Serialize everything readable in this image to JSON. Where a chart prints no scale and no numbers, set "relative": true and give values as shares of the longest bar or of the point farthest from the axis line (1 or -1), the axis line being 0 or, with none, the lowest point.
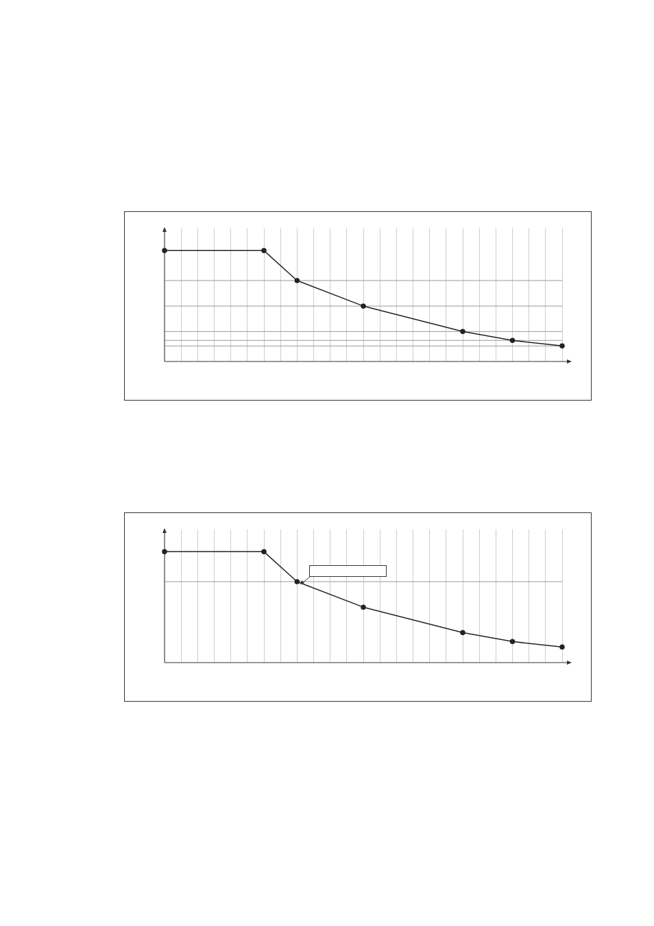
{
  "chart_data": [
    {
      "type": "line",
      "relative": true,
      "categories": [
        null,
        null,
        null,
        null,
        null,
        null,
        null,
        null,
        null,
        null,
        null,
        null,
        null,
        null,
        null,
        null,
        null,
        null,
        null,
        null,
        null,
        null,
        null,
        null,
        null
      ],
      "color": "#222222",
      "marker": "circle",
      "grid": "x",
      "tick_labels": false,
      "values": [
        1,
        null,
        null,
        null,
        null,
        null,
        1,
        null,
        0.73,
        null,
        null,
        null,
        0.5,
        null,
        null,
        null,
        null,
        null,
        0.27,
        null,
        null,
        0.19,
        null,
        null,
        0.14
      ],
      "ref_lines": [
        {
          "axis": "y",
          "value": 0.73,
          "color": "#999999"
        },
        {
          "axis": "y",
          "value": 0.5,
          "color": "#999999"
        },
        {
          "axis": "y",
          "value": 0.27,
          "color": "#999999"
        },
        {
          "axis": "y",
          "value": 0.19,
          "color": "#999999"
        },
        {
          "axis": "y",
          "value": 0.14,
          "color": "#999999"
        }
      ]
    },
    {
      "type": "line",
      "relative": true,
      "categories": [
        null,
        null,
        null,
        null,
        null,
        null,
        null,
        null,
        null,
        null,
        null,
        null,
        null,
        null,
        null,
        null,
        null,
        null,
        null,
        null,
        null,
        null,
        null,
        null,
        null
      ],
      "color": "#222222",
      "marker": "circle",
      "grid": "x",
      "tick_labels": false,
      "values": [
        1,
        null,
        null,
        null,
        null,
        null,
        1,
        null,
        0.73,
        null,
        null,
        null,
        0.5,
        null,
        null,
        null,
        null,
        null,
        0.27,
        null,
        null,
        0.19,
        null,
        null,
        0.14
      ],
      "ref_lines": [
        {
          "axis": "y",
          "value": 0.73,
          "color": "#999999"
        }
      ]
    }
  ]
}
